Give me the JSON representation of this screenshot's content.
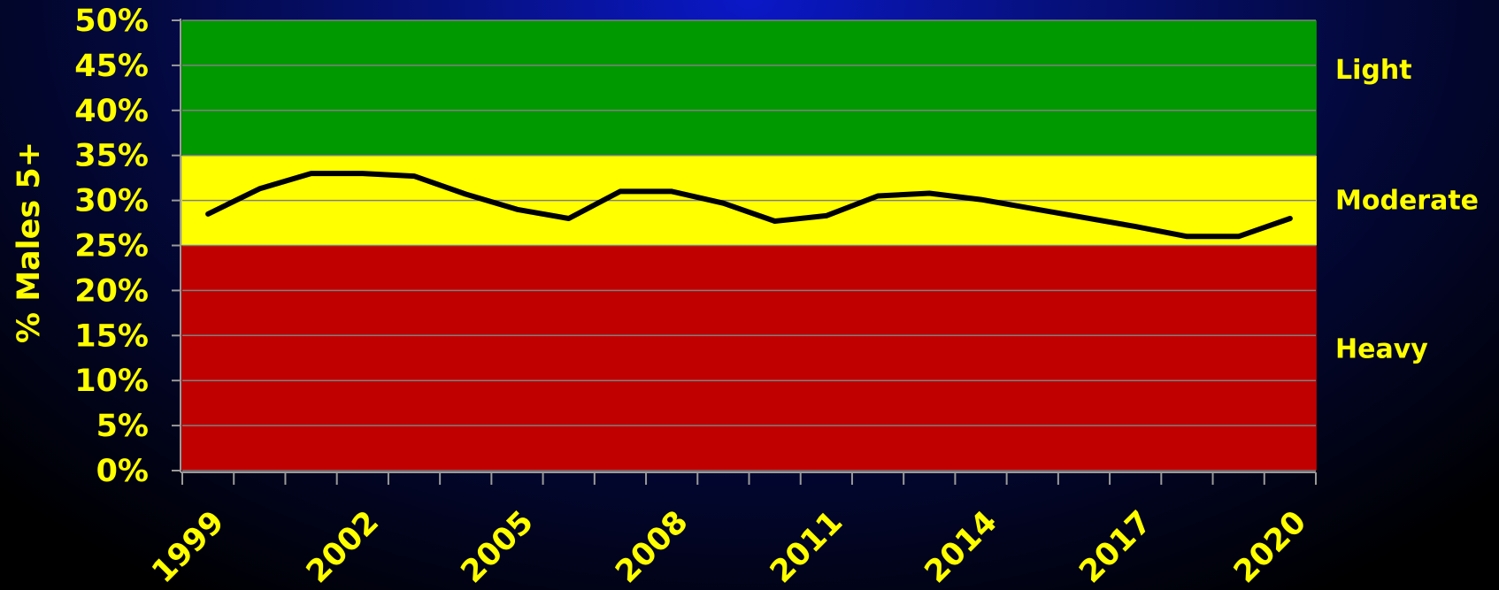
{
  "chart_data": {
    "type": "line",
    "title": "",
    "xlabel": "",
    "ylabel": "% Males  5+",
    "ylim": [
      0,
      50
    ],
    "y_ticks": [
      "0%",
      "5%",
      "10%",
      "15%",
      "20%",
      "25%",
      "30%",
      "35%",
      "40%",
      "45%",
      "50%"
    ],
    "x_tick_labels": [
      "1999",
      "2002",
      "2005",
      "2008",
      "2011",
      "2014",
      "2017",
      "2020"
    ],
    "bands": [
      {
        "label": "Heavy",
        "from": 0,
        "to": 25,
        "color": "#c00000"
      },
      {
        "label": "Moderate",
        "from": 25,
        "to": 35,
        "color": "#ffff00"
      },
      {
        "label": "Light",
        "from": 35,
        "to": 50,
        "color": "#009900"
      }
    ],
    "grid": true,
    "series": [
      {
        "x": [
          1999,
          2000,
          2001,
          2002,
          2003,
          2004,
          2005,
          2006,
          2007,
          2008,
          2009,
          2010,
          2011,
          2012,
          2013,
          2014,
          2015,
          2016,
          2017,
          2018,
          2019,
          2020
        ],
        "values": [
          28.5,
          31.3,
          33.0,
          33.0,
          32.7,
          30.7,
          29.0,
          28.0,
          31.0,
          31.0,
          29.7,
          27.7,
          28.3,
          30.5,
          30.8,
          30.1,
          29.1,
          28.1,
          27.1,
          26.0,
          26.0,
          28.0
        ],
        "color": "#000000"
      }
    ]
  }
}
